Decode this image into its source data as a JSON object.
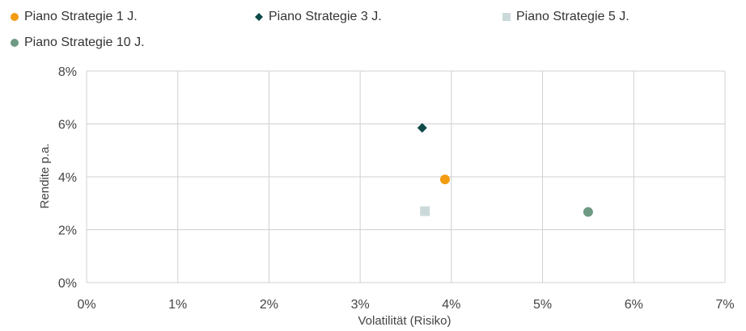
{
  "chart_data": {
    "type": "scatter",
    "title": "",
    "xlabel": "Volatilität (Risiko)",
    "ylabel": "Rendite p.a.",
    "xlim": [
      0,
      7
    ],
    "ylim": [
      0,
      8
    ],
    "xticks": [
      "0%",
      "1%",
      "2%",
      "3%",
      "4%",
      "5%",
      "6%",
      "7%"
    ],
    "yticks": [
      "0%",
      "2%",
      "4%",
      "6%",
      "8%"
    ],
    "grid": true,
    "legend_position": "top",
    "series": [
      {
        "name": "Piano Strategie 1 J.",
        "marker": "circle",
        "color": "#F39C12",
        "x": 3.93,
        "y": 3.9
      },
      {
        "name": "Piano Strategie 3 J.",
        "marker": "diamond",
        "color": "#0E4A48",
        "x": 3.68,
        "y": 5.85
      },
      {
        "name": "Piano Strategie 5 J.",
        "marker": "square",
        "color": "#CCD9DB",
        "x": 3.71,
        "y": 2.7
      },
      {
        "name": "Piano Strategie 10 J.",
        "marker": "circle",
        "color": "#6E9A84",
        "x": 5.5,
        "y": 2.67
      }
    ]
  }
}
